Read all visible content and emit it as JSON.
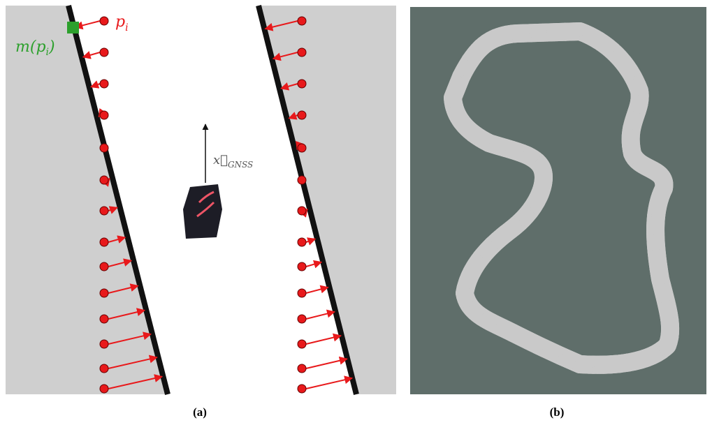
{
  "panel_a": {
    "point_label": {
      "base": "p",
      "sub": "i"
    },
    "match_label": {
      "before": "m(p",
      "sub": "i",
      "after": ")"
    },
    "vector_label": {
      "base": "x⃗",
      "sub": "GNSS"
    },
    "caption": "(a)"
  },
  "panel_b": {
    "caption": "(b)"
  }
}
